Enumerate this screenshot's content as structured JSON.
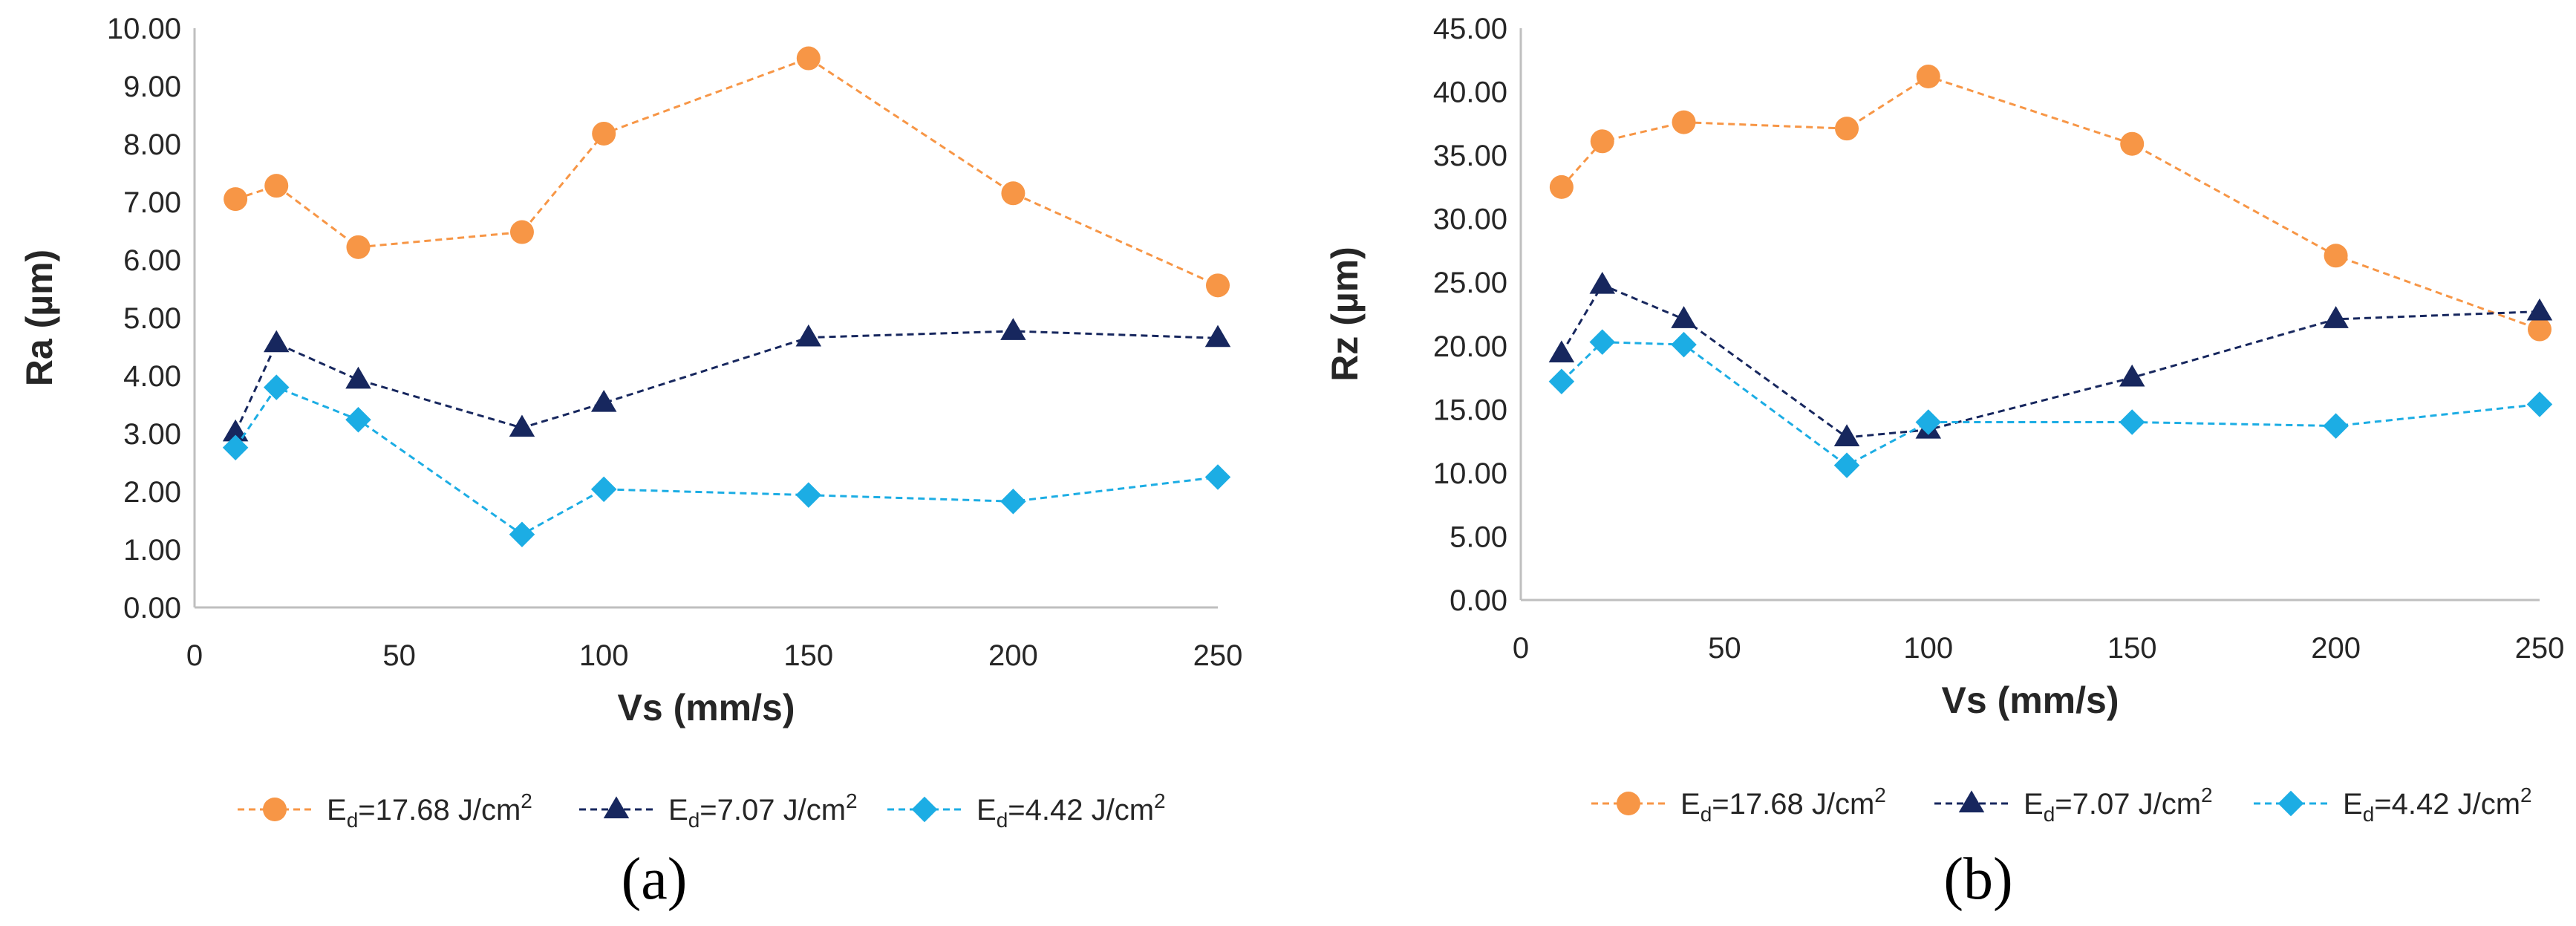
{
  "chart_data": [
    {
      "type": "line",
      "panel_label": "(a)",
      "xlabel": "Vs (mm/s)",
      "ylabel": "Ra (µm)",
      "xlim": [
        0,
        250
      ],
      "ylim": [
        0,
        10
      ],
      "x_ticks": [
        0,
        50,
        100,
        150,
        200,
        250
      ],
      "y_ticks": [
        "0.00",
        "1.00",
        "2.00",
        "3.00",
        "4.00",
        "5.00",
        "6.00",
        "7.00",
        "8.00",
        "9.00",
        "10.00"
      ],
      "legend_position": "bottom",
      "series": [
        {
          "name": "Ed=17.68 J/cm2",
          "legend": {
            "base": "E",
            "sub": "d",
            "rest": "=17.68 J/cm",
            "sup": "2"
          },
          "marker": "circle",
          "color": "#F79646",
          "x": [
            10,
            20,
            40,
            80,
            100,
            150,
            200,
            250
          ],
          "values": [
            7.05,
            7.28,
            6.22,
            6.48,
            8.18,
            9.48,
            7.15,
            5.56
          ]
        },
        {
          "name": "Ed=7.07 J/cm2",
          "legend": {
            "base": "E",
            "sub": "d",
            "rest": "=7.07 J/cm",
            "sup": "2"
          },
          "marker": "triangle",
          "color": "#17275E",
          "x": [
            10,
            20,
            40,
            80,
            100,
            150,
            200,
            250
          ],
          "values": [
            3.02,
            4.56,
            3.93,
            3.1,
            3.53,
            4.66,
            4.77,
            4.65
          ]
        },
        {
          "name": "Ed=4.42 J/cm2",
          "legend": {
            "base": "E",
            "sub": "d",
            "rest": "=4.42 J/cm",
            "sup": "2"
          },
          "marker": "diamond",
          "color": "#1CADE4",
          "x": [
            10,
            20,
            40,
            80,
            100,
            150,
            200,
            250
          ],
          "values": [
            2.76,
            3.8,
            3.24,
            1.26,
            2.04,
            1.94,
            1.83,
            2.25
          ]
        }
      ]
    },
    {
      "type": "line",
      "panel_label": "(b)",
      "xlabel": "Vs (mm/s)",
      "ylabel": "Rz (µm)",
      "xlim": [
        0,
        250
      ],
      "ylim": [
        0,
        45
      ],
      "x_ticks": [
        0,
        50,
        100,
        150,
        200,
        250
      ],
      "y_ticks": [
        "0.00",
        "5.00",
        "10.00",
        "15.00",
        "20.00",
        "25.00",
        "30.00",
        "35.00",
        "40.00",
        "45.00"
      ],
      "legend_position": "bottom",
      "series": [
        {
          "name": "Ed=17.68 J/cm2",
          "legend": {
            "base": "E",
            "sub": "d",
            "rest": "=17.68 J/cm",
            "sup": "2"
          },
          "marker": "circle",
          "color": "#F79646",
          "x": [
            10,
            20,
            40,
            80,
            100,
            150,
            200,
            250
          ],
          "values": [
            32.5,
            36.1,
            37.6,
            37.1,
            41.2,
            35.9,
            27.1,
            21.3
          ]
        },
        {
          "name": "Ed=7.07 J/cm2",
          "legend": {
            "base": "E",
            "sub": "d",
            "rest": "=7.07 J/cm",
            "sup": "2"
          },
          "marker": "triangle",
          "color": "#17275E",
          "x": [
            10,
            20,
            40,
            80,
            100,
            150,
            200,
            250
          ],
          "values": [
            19.4,
            24.8,
            22.1,
            12.8,
            13.4,
            17.5,
            22.1,
            22.7
          ]
        },
        {
          "name": "Ed=4.42 J/cm2",
          "legend": {
            "base": "E",
            "sub": "d",
            "rest": "=4.42 J/cm",
            "sup": "2"
          },
          "marker": "diamond",
          "color": "#1CADE4",
          "x": [
            10,
            20,
            40,
            80,
            100,
            150,
            200,
            250
          ],
          "values": [
            17.2,
            20.3,
            20.1,
            10.6,
            14.0,
            14.0,
            13.7,
            15.4
          ]
        }
      ]
    }
  ]
}
